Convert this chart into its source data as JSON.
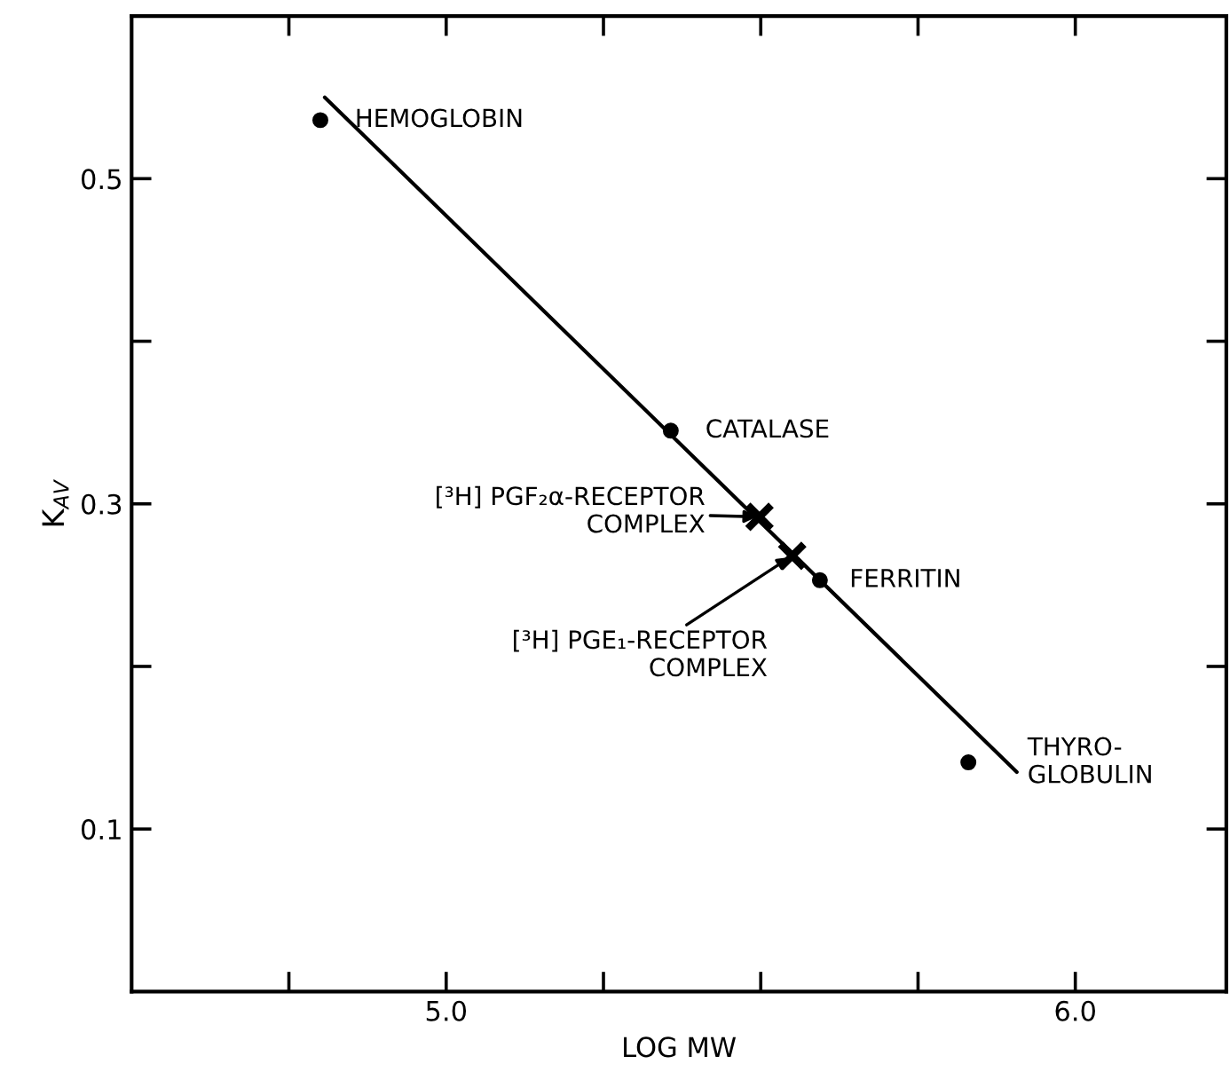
{
  "chart_data": {
    "type": "scatter",
    "xlabel": "LOG MW",
    "ylabel": "K$_{AV}$",
    "xlim": [
      4.5,
      6.24
    ],
    "ylim": [
      0,
      0.6
    ],
    "xticks": [
      {
        "value": 4.75,
        "label": null
      },
      {
        "value": 5.0,
        "label": "5.0"
      },
      {
        "value": 5.25,
        "label": null
      },
      {
        "value": 5.5,
        "label": null
      },
      {
        "value": 5.75,
        "label": null
      },
      {
        "value": 6.0,
        "label": "6.0"
      }
    ],
    "yticks": [
      0.1,
      {
        "value": 0.2,
        "label": null
      },
      0.3,
      {
        "value": 0.4,
        "label": null
      },
      0.5
    ],
    "grid": false,
    "series": [
      {
        "type": "line",
        "color": "#000000",
        "marker": "none",
        "line_style": "solid",
        "x": [
          4.807,
          5.907
        ],
        "values": [
          0.55,
          0.135
        ]
      },
      {
        "type": "scatter",
        "color": "#000000",
        "marker": "circle",
        "x": [
          4.8,
          5.357,
          5.594,
          5.83
        ],
        "values": [
          0.536,
          0.345,
          0.253,
          0.141
        ]
      },
      {
        "type": "scatter",
        "color": "#000000",
        "marker": "cross",
        "x": [
          5.498,
          5.55
        ],
        "values": [
          0.292,
          0.268
        ]
      }
    ],
    "annotations": [
      {
        "text": "HEMOGLOBIN",
        "x": 4.8,
        "y": 0.536
      },
      {
        "text": "CATALASE",
        "x": 5.357,
        "y": 0.345
      },
      {
        "text": "FERRITIN",
        "x": 5.594,
        "y": 0.253
      },
      {
        "text": "THYRO-\nGLOBULIN",
        "x": 5.83,
        "y": 0.141
      },
      {
        "text": "[³H] PGF₂α-RECEPTOR\nCOMPLEX",
        "x": 5.498,
        "y": 0.292
      },
      {
        "text": "[³H] PGE₁-RECEPTOR\nCOMPLEX",
        "x": 5.55,
        "y": 0.268
      }
    ]
  }
}
